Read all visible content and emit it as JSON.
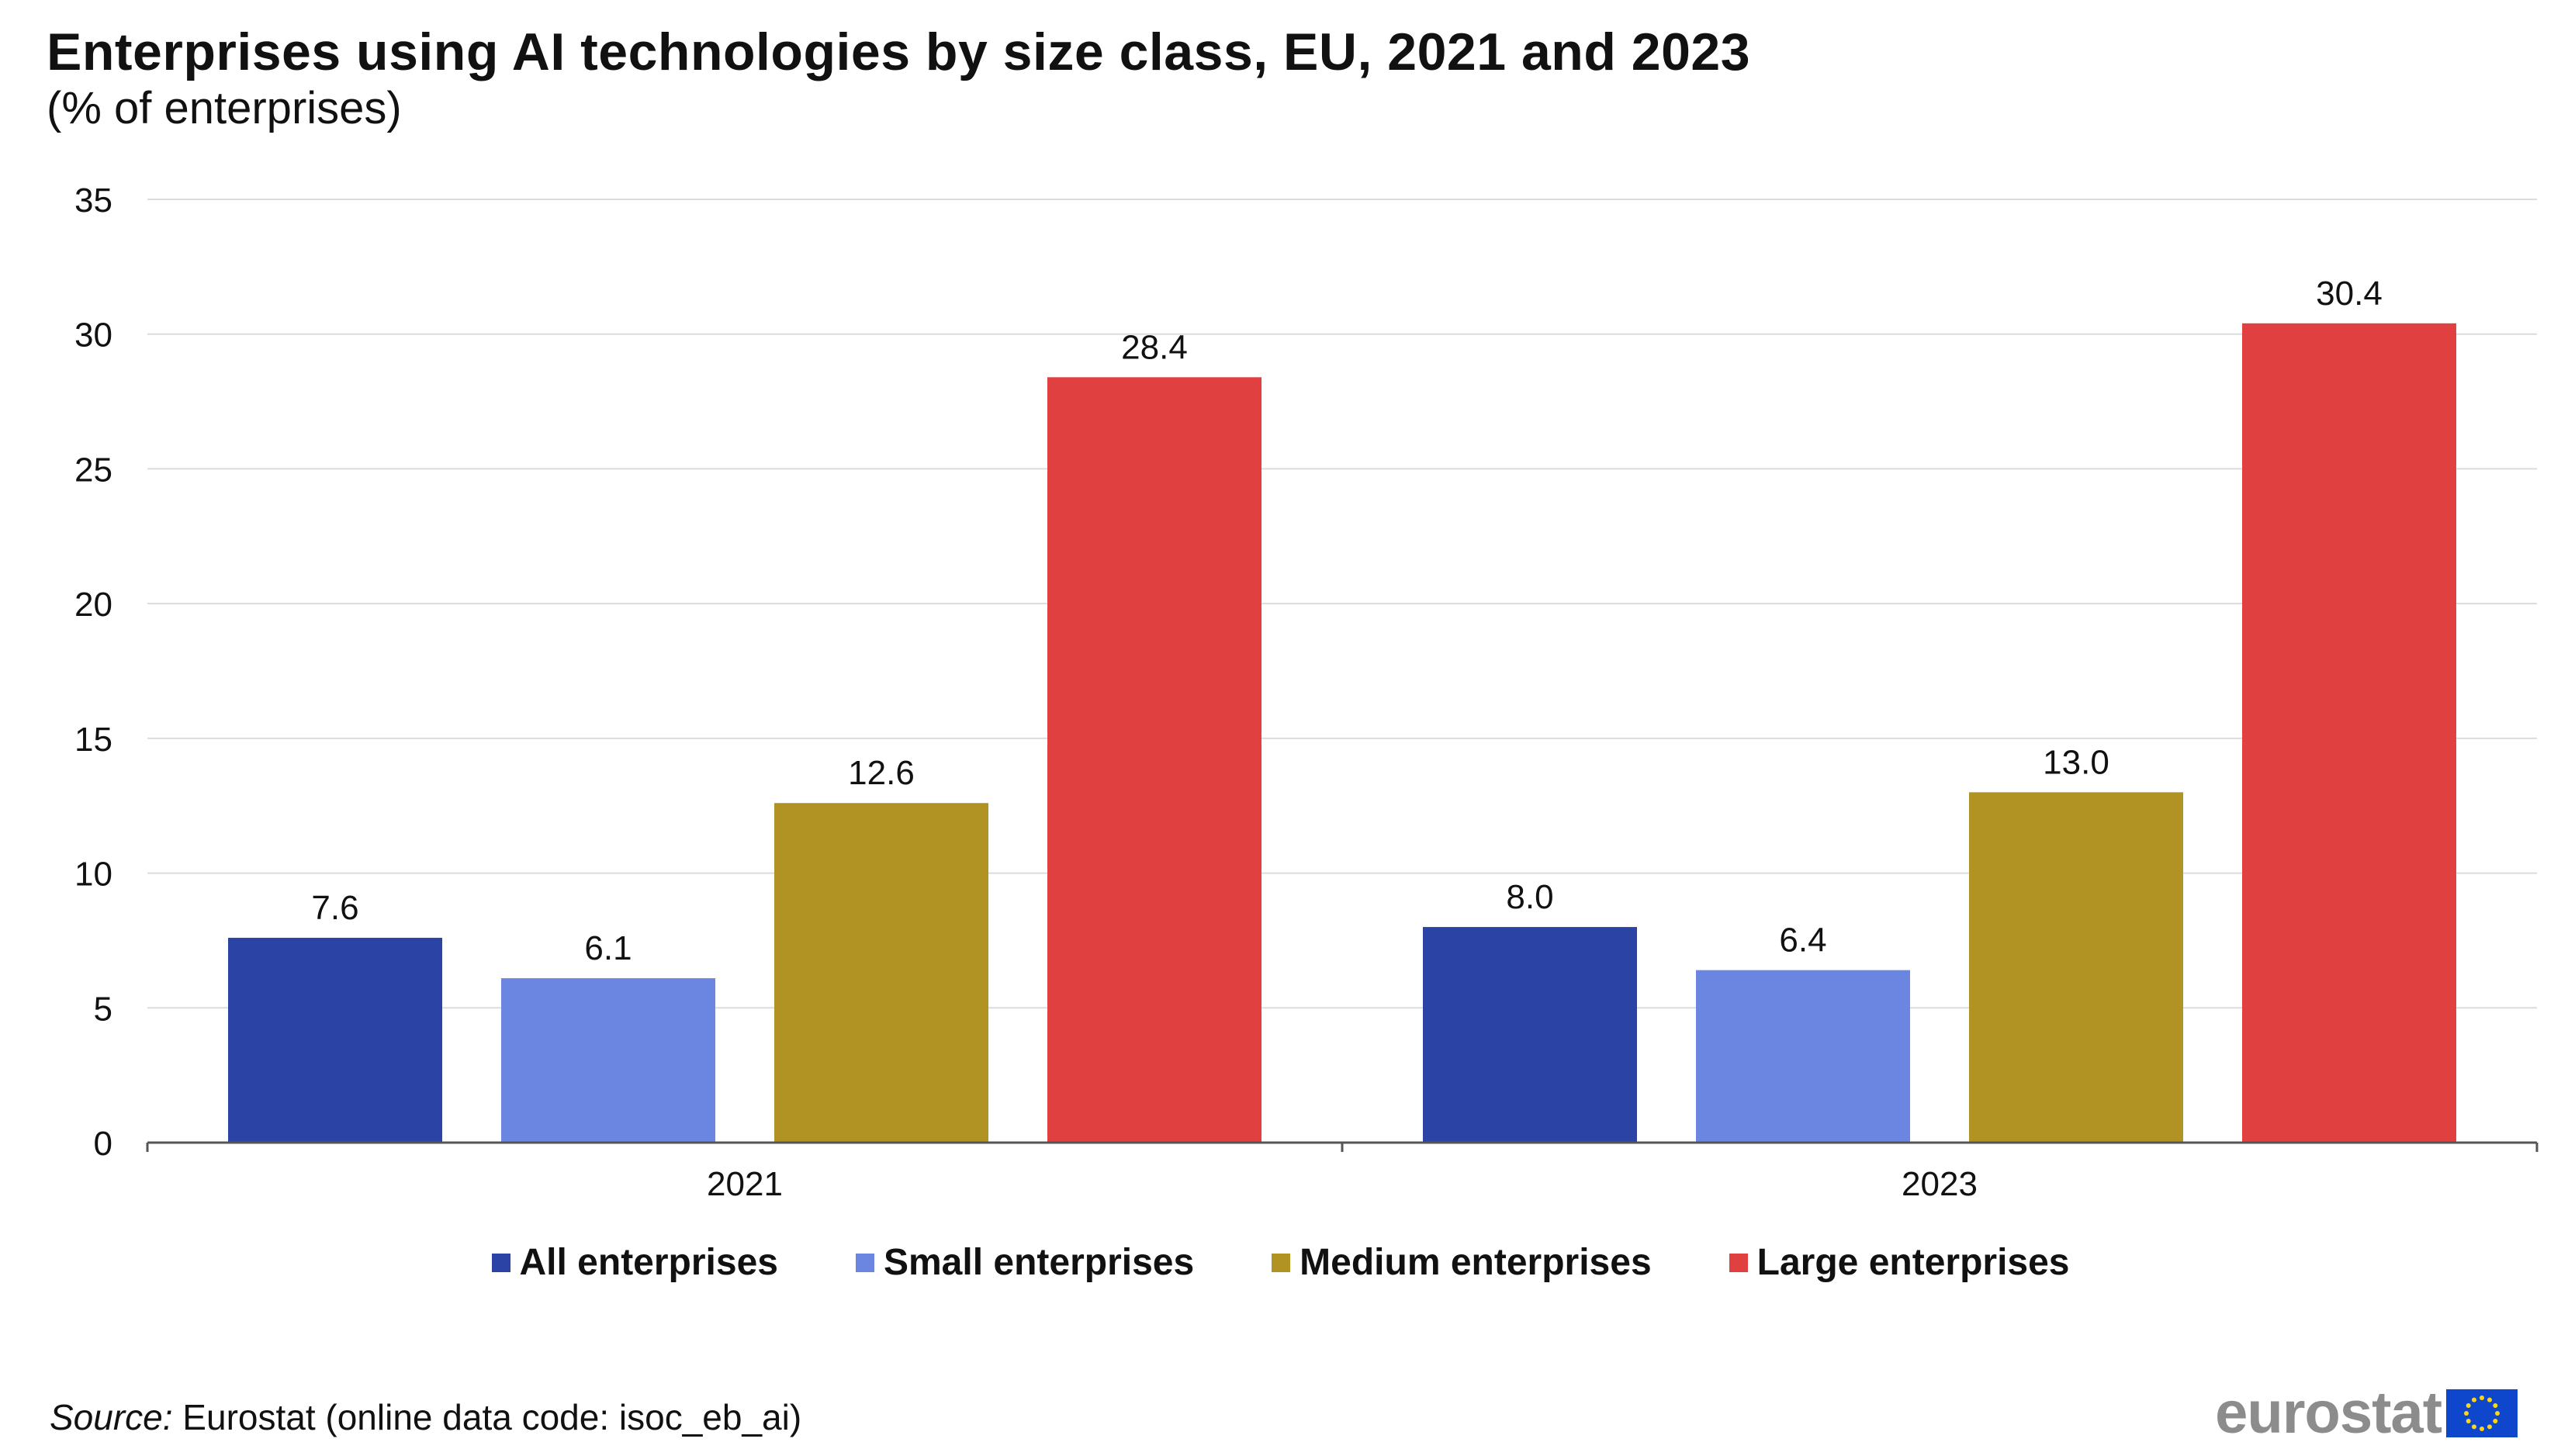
{
  "title": "Enterprises using AI technologies by size class, EU, 2021 and 2023",
  "subtitle": "(% of enterprises)",
  "source": {
    "prefix": "Source:",
    "text": " Eurostat (online data code: isoc_eb_ai)"
  },
  "logo_text": "eurostat",
  "chart_data": {
    "type": "bar",
    "title": "Enterprises using AI technologies by size class, EU, 2021 and 2023",
    "subtitle": "(% of enterprises)",
    "categories": [
      "2021",
      "2023"
    ],
    "series": [
      {
        "name": "All enterprises",
        "values": [
          7.6,
          8.0
        ],
        "labels": [
          "7.6",
          "8.0"
        ],
        "color": "#2a43a4"
      },
      {
        "name": "Small enterprises",
        "values": [
          6.1,
          6.4
        ],
        "labels": [
          "6.1",
          "6.4"
        ],
        "color": "#6b86e0"
      },
      {
        "name": "Medium enterprises",
        "values": [
          12.6,
          13.0
        ],
        "labels": [
          "12.6",
          "13.0"
        ],
        "color": "#b09322"
      },
      {
        "name": "Large enterprises",
        "values": [
          28.4,
          30.4
        ],
        "labels": [
          "28.4",
          "30.4"
        ],
        "color": "#e04040"
      }
    ],
    "ylim": [
      0,
      35
    ],
    "yticks": [
      "0",
      "5",
      "10",
      "15",
      "20",
      "25",
      "30",
      "35"
    ],
    "xlabel": "",
    "ylabel": "",
    "grid": true,
    "legend": "bottom-center"
  }
}
